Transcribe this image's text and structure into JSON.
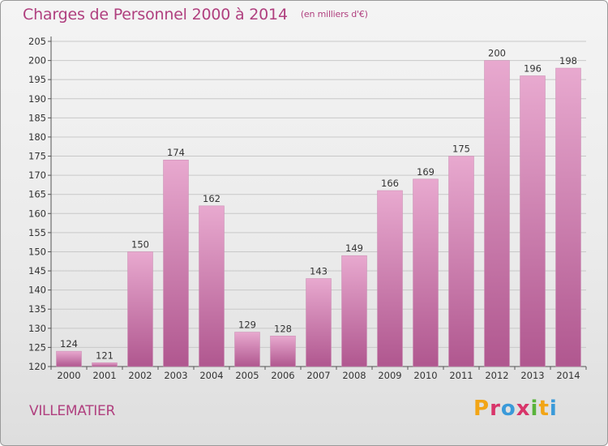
{
  "header": {
    "title": "Charges de Personnel 2000 à 2014",
    "subtitle": "(en milliers d'€)"
  },
  "footer": {
    "commune": "VILLEMATIER",
    "brand": "Proxiti"
  },
  "colors": {
    "accent": "#b0407f",
    "bar_top": "#e8a9cf",
    "bar_bottom": "#b0578f",
    "grid": "#c8c8c8",
    "logo": [
      "#f2a516",
      "#d8356a",
      "#3a9ad9",
      "#59b33b"
    ]
  },
  "chart_data": {
    "type": "bar",
    "categories": [
      "2000",
      "2001",
      "2002",
      "2003",
      "2004",
      "2005",
      "2006",
      "2007",
      "2008",
      "2009",
      "2010",
      "2011",
      "2012",
      "2013",
      "2014"
    ],
    "values": [
      124,
      121,
      150,
      174,
      162,
      129,
      128,
      143,
      149,
      166,
      169,
      175,
      200,
      196,
      198
    ],
    "ylim": [
      120,
      205
    ],
    "yticks": [
      120,
      125,
      130,
      135,
      140,
      145,
      150,
      155,
      160,
      165,
      170,
      175,
      180,
      185,
      190,
      195,
      200,
      205
    ],
    "grid": true,
    "xlabel": "",
    "ylabel": ""
  }
}
